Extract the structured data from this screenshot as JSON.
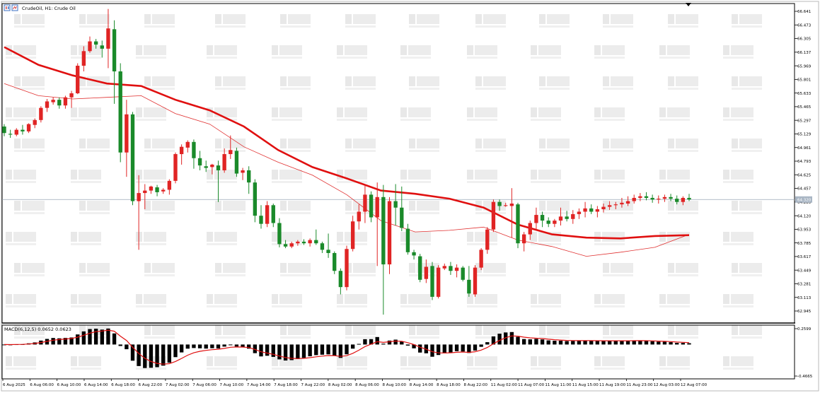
{
  "chart_data": {
    "type": "candlestick",
    "symbol_header": "CrudeOil, H1:  Crude Oil",
    "last_price_label": "64.320",
    "last_price": 64.32,
    "y_ticks": [
      "66.641",
      "66.473",
      "66.305",
      "66.137",
      "65.969",
      "65.801",
      "65.633",
      "65.465",
      "65.297",
      "65.129",
      "64.961",
      "64.793",
      "64.625",
      "64.457",
      "64.289",
      "64.120",
      "63.953",
      "63.785",
      "63.617",
      "63.449",
      "63.281",
      "63.113",
      "62.945"
    ],
    "y_range": [
      62.945,
      66.641
    ],
    "x_labels": [
      "6 Aug 2025",
      "6 Aug 06:00",
      "6 Aug 10:00",
      "6 Aug 14:00",
      "6 Aug 18:00",
      "6 Aug 22:00",
      "7 Aug 02:00",
      "7 Aug 06:00",
      "7 Aug 10:00",
      "7 Aug 14:00",
      "7 Aug 18:00",
      "7 Aug 22:00",
      "8 Aug 02:00",
      "8 Aug 06:00",
      "8 Aug 10:00",
      "8 Aug 14:00",
      "8 Aug 18:00",
      "8 Aug 22:00",
      "11 Aug 02:00",
      "11 Aug 07:00",
      "11 Aug 11:00",
      "11 Aug 15:00",
      "11 Aug 19:00",
      "11 Aug 23:00",
      "12 Aug 03:00",
      "12 Aug 07:00"
    ],
    "candles": [
      [
        65.22,
        65.25,
        65.1,
        65.14
      ],
      [
        65.13,
        65.18,
        65.08,
        65.12
      ],
      [
        65.12,
        65.2,
        65.1,
        65.18
      ],
      [
        65.18,
        65.24,
        65.12,
        65.16
      ],
      [
        65.16,
        65.26,
        65.14,
        65.25
      ],
      [
        65.24,
        65.32,
        65.2,
        65.3
      ],
      [
        65.3,
        65.47,
        65.27,
        65.45
      ],
      [
        65.45,
        65.56,
        65.4,
        65.53
      ],
      [
        65.52,
        65.58,
        65.49,
        65.55
      ],
      [
        65.55,
        65.58,
        65.44,
        65.48
      ],
      [
        65.48,
        65.6,
        65.44,
        65.58
      ],
      [
        65.58,
        65.66,
        65.45,
        65.63
      ],
      [
        65.63,
        66.0,
        65.62,
        65.97
      ],
      [
        65.97,
        66.21,
        65.9,
        66.15
      ],
      [
        66.15,
        66.33,
        66.13,
        66.27
      ],
      [
        66.27,
        66.3,
        66.18,
        66.23
      ],
      [
        66.22,
        66.28,
        66.07,
        66.18
      ],
      [
        66.18,
        66.67,
        65.94,
        66.43
      ],
      [
        66.42,
        66.53,
        65.5,
        65.9
      ],
      [
        65.9,
        66.0,
        64.78,
        64.9
      ],
      [
        64.9,
        65.55,
        64.6,
        65.37
      ],
      [
        65.37,
        65.4,
        64.25,
        64.3
      ],
      [
        64.3,
        64.62,
        63.7,
        64.4
      ],
      [
        64.4,
        64.51,
        64.2,
        64.43
      ],
      [
        64.43,
        64.49,
        64.39,
        64.48
      ],
      [
        64.47,
        64.5,
        64.36,
        64.41
      ],
      [
        64.42,
        64.46,
        64.39,
        64.44
      ],
      [
        64.44,
        64.57,
        64.38,
        64.55
      ],
      [
        64.55,
        64.9,
        64.52,
        64.88
      ],
      [
        64.88,
        65.0,
        64.75,
        64.97
      ],
      [
        64.96,
        65.05,
        64.9,
        65.03
      ],
      [
        65.03,
        65.06,
        64.7,
        64.83
      ],
      [
        64.83,
        64.92,
        64.68,
        64.74
      ],
      [
        64.73,
        64.8,
        64.66,
        64.71
      ],
      [
        64.72,
        64.76,
        64.63,
        64.75
      ],
      [
        64.74,
        64.8,
        64.29,
        64.68
      ],
      [
        64.68,
        64.95,
        64.65,
        64.88
      ],
      [
        64.88,
        65.11,
        64.82,
        64.93
      ],
      [
        64.92,
        64.96,
        64.6,
        64.64
      ],
      [
        64.65,
        64.71,
        64.56,
        64.68
      ],
      [
        64.68,
        64.73,
        64.39,
        64.53
      ],
      [
        64.53,
        64.57,
        64.04,
        64.12
      ],
      [
        64.12,
        64.25,
        63.96,
        64.02
      ],
      [
        64.02,
        64.3,
        63.98,
        64.25
      ],
      [
        64.25,
        64.27,
        63.98,
        64.03
      ],
      [
        64.03,
        64.09,
        63.73,
        63.77
      ],
      [
        63.77,
        63.82,
        63.72,
        63.74
      ],
      [
        63.74,
        63.8,
        63.72,
        63.78
      ],
      [
        63.78,
        63.82,
        63.75,
        63.8
      ],
      [
        63.8,
        63.83,
        63.76,
        63.78
      ],
      [
        63.78,
        63.84,
        63.74,
        63.82
      ],
      [
        63.82,
        63.95,
        63.76,
        63.78
      ],
      [
        63.78,
        63.8,
        63.66,
        63.7
      ],
      [
        63.7,
        63.9,
        63.6,
        63.66
      ],
      [
        63.66,
        63.68,
        63.4,
        63.44
      ],
      [
        63.44,
        63.47,
        63.15,
        63.24
      ],
      [
        63.24,
        63.75,
        63.2,
        63.71
      ],
      [
        63.71,
        64.12,
        63.68,
        64.05
      ],
      [
        64.05,
        64.26,
        63.95,
        64.17
      ],
      [
        64.17,
        64.5,
        64.03,
        64.38
      ],
      [
        64.38,
        64.42,
        64.04,
        64.1
      ],
      [
        64.1,
        64.53,
        63.5,
        64.35
      ],
      [
        64.35,
        64.5,
        62.9,
        63.52
      ],
      [
        63.52,
        64.35,
        63.4,
        64.3
      ],
      [
        64.3,
        64.51,
        64.0,
        64.22
      ],
      [
        64.22,
        64.48,
        63.93,
        63.97
      ],
      [
        63.96,
        64.02,
        63.64,
        63.67
      ],
      [
        63.67,
        63.7,
        63.58,
        63.63
      ],
      [
        63.62,
        63.65,
        63.3,
        63.33
      ],
      [
        63.34,
        63.58,
        63.29,
        63.49
      ],
      [
        63.5,
        63.55,
        63.08,
        63.12
      ],
      [
        63.12,
        63.51,
        63.1,
        63.48
      ],
      [
        63.47,
        63.53,
        63.45,
        63.5
      ],
      [
        63.5,
        63.55,
        63.39,
        63.44
      ],
      [
        63.44,
        63.52,
        63.36,
        63.48
      ],
      [
        63.48,
        63.5,
        63.31,
        63.33
      ],
      [
        63.33,
        63.5,
        63.12,
        63.16
      ],
      [
        63.15,
        63.51,
        63.12,
        63.48
      ],
      [
        63.48,
        63.72,
        63.45,
        63.7
      ],
      [
        63.7,
        63.98,
        63.65,
        63.95
      ],
      [
        63.95,
        64.32,
        63.92,
        64.29
      ],
      [
        64.29,
        64.32,
        64.18,
        64.24
      ],
      [
        64.24,
        64.28,
        64.23,
        64.25
      ],
      [
        64.24,
        64.46,
        63.85,
        64.27
      ],
      [
        64.26,
        64.28,
        63.72,
        63.78
      ],
      [
        63.78,
        63.92,
        63.68,
        63.89
      ],
      [
        63.89,
        64.06,
        63.82,
        64.03
      ],
      [
        64.03,
        64.22,
        63.95,
        64.13
      ],
      [
        64.13,
        64.17,
        63.98,
        64.06
      ],
      [
        64.06,
        64.1,
        63.98,
        64.02
      ],
      [
        64.02,
        64.08,
        63.98,
        64.06
      ],
      [
        64.06,
        64.22,
        64.0,
        64.11
      ],
      [
        64.11,
        64.18,
        64.05,
        64.08
      ],
      [
        64.08,
        64.19,
        64.02,
        64.14
      ],
      [
        64.14,
        64.21,
        64.08,
        64.17
      ],
      [
        64.17,
        64.29,
        64.1,
        64.21
      ],
      [
        64.21,
        64.26,
        64.14,
        64.17
      ],
      [
        64.17,
        64.24,
        64.1,
        64.2
      ],
      [
        64.2,
        64.27,
        64.16,
        64.23
      ],
      [
        64.23,
        64.3,
        64.19,
        64.25
      ],
      [
        64.25,
        64.29,
        64.2,
        64.26
      ],
      [
        64.26,
        64.34,
        64.22,
        64.28
      ],
      [
        64.27,
        64.36,
        64.24,
        64.3
      ],
      [
        64.3,
        64.38,
        64.27,
        64.34
      ],
      [
        64.34,
        64.4,
        64.3,
        64.36
      ],
      [
        64.36,
        64.41,
        64.31,
        64.34
      ],
      [
        64.34,
        64.38,
        64.28,
        64.32
      ],
      [
        64.32,
        64.37,
        64.27,
        64.33
      ],
      [
        64.33,
        64.38,
        64.29,
        64.35
      ],
      [
        64.35,
        64.39,
        64.3,
        64.33
      ],
      [
        64.33,
        64.37,
        64.26,
        64.29
      ],
      [
        64.29,
        64.36,
        64.25,
        64.34
      ],
      [
        64.34,
        64.39,
        64.3,
        64.32
      ]
    ],
    "ma_slow": [
      [
        0,
        66.2
      ],
      [
        0.05,
        65.98
      ],
      [
        0.1,
        65.85
      ],
      [
        0.15,
        65.75
      ],
      [
        0.2,
        65.72
      ],
      [
        0.25,
        65.55
      ],
      [
        0.3,
        65.42
      ],
      [
        0.35,
        65.22
      ],
      [
        0.4,
        64.93
      ],
      [
        0.45,
        64.72
      ],
      [
        0.5,
        64.58
      ],
      [
        0.55,
        64.43
      ],
      [
        0.6,
        64.39
      ],
      [
        0.65,
        64.33
      ],
      [
        0.7,
        64.22
      ],
      [
        0.75,
        64.01
      ],
      [
        0.8,
        63.89
      ],
      [
        0.85,
        63.85
      ],
      [
        0.9,
        63.84
      ],
      [
        0.95,
        63.87
      ],
      [
        1.0,
        63.88
      ]
    ],
    "ma_fast": [
      [
        0,
        65.75
      ],
      [
        0.05,
        65.6
      ],
      [
        0.1,
        65.56
      ],
      [
        0.15,
        65.58
      ],
      [
        0.2,
        65.6
      ],
      [
        0.25,
        65.38
      ],
      [
        0.3,
        65.25
      ],
      [
        0.35,
        64.97
      ],
      [
        0.4,
        64.78
      ],
      [
        0.45,
        64.62
      ],
      [
        0.5,
        64.38
      ],
      [
        0.55,
        64.06
      ],
      [
        0.6,
        63.92
      ],
      [
        0.65,
        63.94
      ],
      [
        0.7,
        63.98
      ],
      [
        0.75,
        63.82
      ],
      [
        0.8,
        63.74
      ],
      [
        0.85,
        63.62
      ],
      [
        0.9,
        63.67
      ],
      [
        0.95,
        63.73
      ],
      [
        1.0,
        63.89
      ]
    ],
    "macd": {
      "label": "MACD(6,12,5) 0.0652 0.0623",
      "y_ticks": [
        "0.2599",
        "-0.4665"
      ],
      "y_range": [
        -0.4665,
        0.2599
      ]
    }
  },
  "icons": [
    "chart-mode-icon",
    "chart-symbol-icon"
  ]
}
